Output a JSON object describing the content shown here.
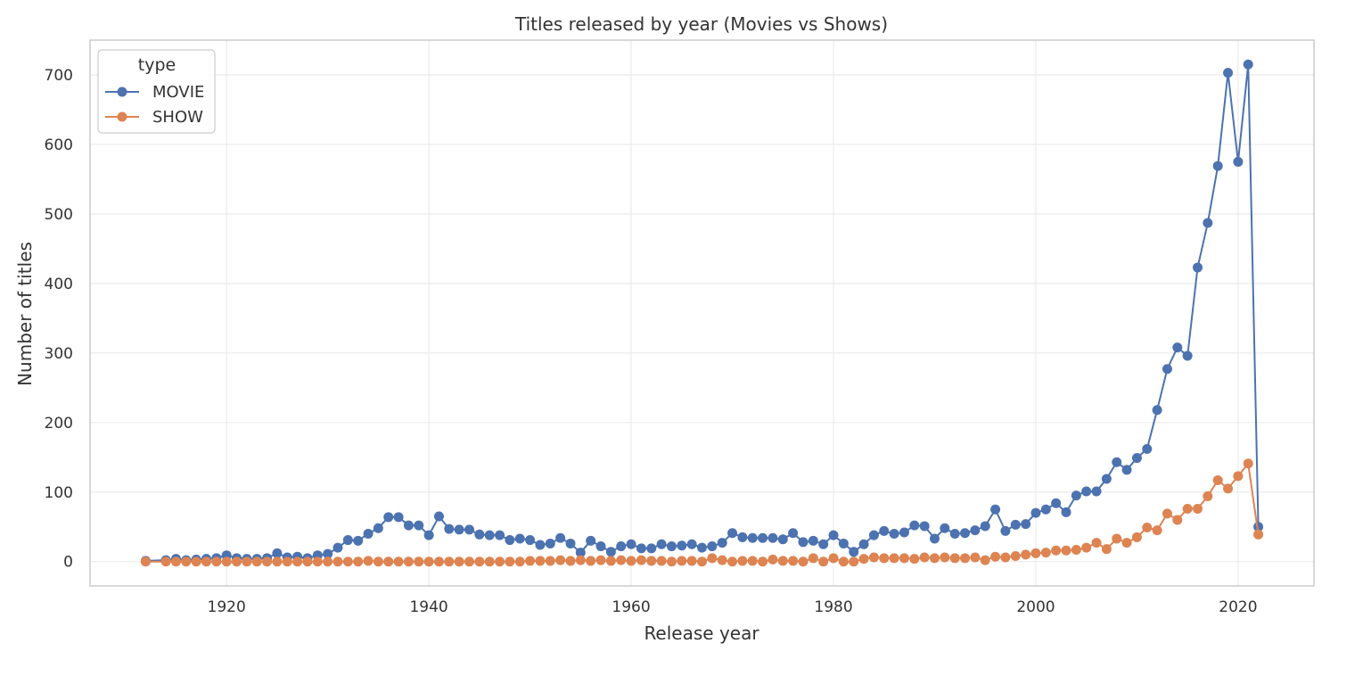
{
  "chart_data": {
    "type": "line",
    "title": "Titles released by year (Movies vs Shows)",
    "xlabel": "Release year",
    "ylabel": "Number of titles",
    "xlim": [
      1906.5,
      2027.5
    ],
    "ylim": [
      -35,
      750
    ],
    "xticks": [
      1920,
      1940,
      1960,
      1980,
      2000,
      2020
    ],
    "yticks": [
      0,
      100,
      200,
      300,
      400,
      500,
      600,
      700
    ],
    "grid": true,
    "legend": {
      "title": "type",
      "placement": "top-left"
    },
    "colors": {
      "MOVIE": "#4c72b0",
      "SHOW": "#dd8452",
      "grid": "#ebebeb",
      "frame": "#cccccc"
    },
    "series": [
      {
        "name": "MOVIE",
        "color": "#4c72b0",
        "x": [
          1912,
          1914,
          1915,
          1916,
          1917,
          1918,
          1919,
          1920,
          1921,
          1922,
          1923,
          1924,
          1925,
          1926,
          1927,
          1928,
          1929,
          1930,
          1931,
          1932,
          1933,
          1934,
          1935,
          1936,
          1937,
          1938,
          1939,
          1940,
          1941,
          1942,
          1943,
          1944,
          1945,
          1946,
          1947,
          1948,
          1949,
          1950,
          1951,
          1952,
          1953,
          1954,
          1955,
          1956,
          1957,
          1958,
          1959,
          1960,
          1961,
          1962,
          1963,
          1964,
          1965,
          1966,
          1967,
          1968,
          1969,
          1970,
          1971,
          1972,
          1973,
          1974,
          1975,
          1976,
          1977,
          1978,
          1979,
          1980,
          1981,
          1982,
          1983,
          1984,
          1985,
          1986,
          1987,
          1988,
          1989,
          1990,
          1991,
          1992,
          1993,
          1994,
          1995,
          1996,
          1997,
          1998,
          1999,
          2000,
          2001,
          2002,
          2003,
          2004,
          2005,
          2006,
          2007,
          2008,
          2009,
          2010,
          2011,
          2012,
          2013,
          2014,
          2015,
          2016,
          2017,
          2018,
          2019,
          2020,
          2021,
          2022
        ],
        "values": [
          1,
          2,
          4,
          2,
          3,
          4,
          5,
          9,
          5,
          4,
          4,
          5,
          12,
          6,
          7,
          5,
          9,
          11,
          20,
          31,
          30,
          40,
          48,
          64,
          64,
          52,
          52,
          38,
          65,
          47,
          46,
          46,
          39,
          38,
          38,
          31,
          33,
          31,
          24,
          26,
          34,
          26,
          13,
          30,
          22,
          14,
          22,
          25,
          19,
          19,
          25,
          22,
          23,
          25,
          20,
          22,
          27,
          41,
          35,
          34,
          34,
          34,
          32,
          41,
          28,
          30,
          25,
          38,
          26,
          14,
          25,
          38,
          44,
          40,
          42,
          52,
          51,
          33,
          48,
          40,
          41,
          45,
          51,
          75,
          44,
          53,
          54,
          70,
          75,
          84,
          71,
          95,
          101,
          101,
          119,
          143,
          132,
          149,
          162,
          218,
          277,
          308,
          296,
          423,
          487,
          569,
          703,
          575,
          715,
          50
        ]
      },
      {
        "name": "SHOW",
        "color": "#dd8452",
        "x": [
          1912,
          1914,
          1915,
          1916,
          1917,
          1918,
          1919,
          1920,
          1921,
          1922,
          1923,
          1924,
          1925,
          1926,
          1927,
          1928,
          1929,
          1930,
          1931,
          1932,
          1933,
          1934,
          1935,
          1936,
          1937,
          1938,
          1939,
          1940,
          1941,
          1942,
          1943,
          1944,
          1945,
          1946,
          1947,
          1948,
          1949,
          1950,
          1951,
          1952,
          1953,
          1954,
          1955,
          1956,
          1957,
          1958,
          1959,
          1960,
          1961,
          1962,
          1963,
          1964,
          1965,
          1966,
          1967,
          1968,
          1969,
          1970,
          1971,
          1972,
          1973,
          1974,
          1975,
          1976,
          1977,
          1978,
          1979,
          1980,
          1981,
          1982,
          1983,
          1984,
          1985,
          1986,
          1987,
          1988,
          1989,
          1990,
          1991,
          1992,
          1993,
          1994,
          1995,
          1996,
          1997,
          1998,
          1999,
          2000,
          2001,
          2002,
          2003,
          2004,
          2005,
          2006,
          2007,
          2008,
          2009,
          2010,
          2011,
          2012,
          2013,
          2014,
          2015,
          2016,
          2017,
          2018,
          2019,
          2020,
          2021,
          2022
        ],
        "values": [
          0,
          0,
          0,
          0,
          0,
          0,
          0,
          0,
          0,
          0,
          0,
          0,
          0,
          0,
          0,
          0,
          0,
          0,
          0,
          0,
          0,
          1,
          0,
          0,
          0,
          0,
          0,
          0,
          0,
          0,
          0,
          0,
          0,
          0,
          0,
          0,
          0,
          1,
          1,
          1,
          2,
          1,
          2,
          1,
          2,
          1,
          2,
          1,
          2,
          1,
          1,
          0,
          1,
          1,
          0,
          5,
          2,
          0,
          1,
          1,
          0,
          3,
          1,
          1,
          0,
          5,
          0,
          5,
          0,
          0,
          4,
          6,
          5,
          5,
          5,
          4,
          6,
          5,
          6,
          5,
          5,
          6,
          2,
          7,
          6,
          8,
          10,
          12,
          13,
          16,
          16,
          17,
          20,
          27,
          18,
          33,
          27,
          35,
          49,
          45,
          69,
          60,
          76,
          76,
          94,
          117,
          105,
          123,
          141,
          39
        ]
      }
    ]
  }
}
